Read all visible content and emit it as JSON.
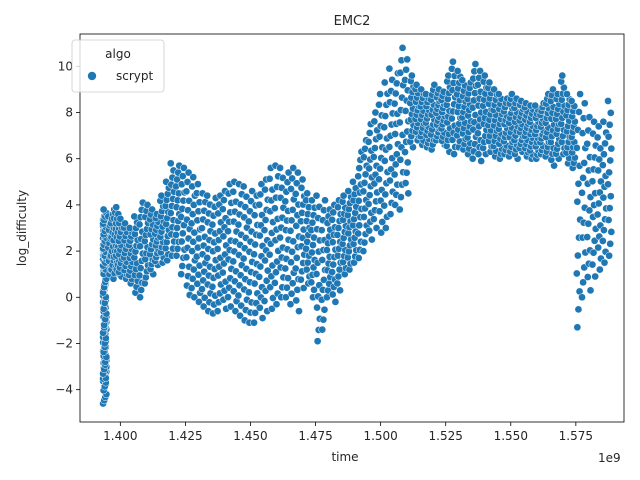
{
  "chart_data": {
    "type": "scatter",
    "title": "EMC2",
    "xlabel": "time",
    "ylabel": "log_difficulty",
    "x_offset_text": "1e9",
    "xlim": [
      1384500000.0,
      1593500000.0
    ],
    "ylim": [
      -5.4,
      11.4
    ],
    "x_ticks": [
      1400000000.0,
      1425000000.0,
      1450000000.0,
      1475000000.0,
      1500000000.0,
      1525000000.0,
      1550000000.0,
      1575000000.0
    ],
    "x_tick_labels": [
      "1.400",
      "1.425",
      "1.450",
      "1.475",
      "1.500",
      "1.525",
      "1.550",
      "1.575"
    ],
    "y_ticks": [
      -4,
      -2,
      0,
      2,
      4,
      6,
      8,
      10
    ],
    "y_tick_labels": [
      "−4",
      "−2",
      "0",
      "2",
      "4",
      "6",
      "8",
      "10"
    ],
    "grid": false,
    "legend": {
      "title": "algo",
      "placement": "upper-left",
      "entries": [
        {
          "label": "scrypt",
          "color": "#1f77b4"
        }
      ]
    },
    "series": [
      {
        "name": "scrypt",
        "color": "#1f77b4",
        "marker_edge": "#ffffff",
        "x": [
          1394000000.0,
          1394000000.0,
          1394000000.0,
          1394000000.0,
          1394000000.0,
          1394000000.0,
          1394000000.0,
          1394000000.0,
          1394000000.0,
          1394000000.0,
          1394000000.0,
          1394000000.0,
          1396000000.0,
          1397000000.0,
          1398000000.0,
          1399000000.0,
          1400000000.0,
          1402000000.0,
          1404000000.0,
          1406000000.0,
          1408000000.0,
          1410000000.0,
          1412000000.0,
          1414000000.0,
          1416000000.0,
          1418000000.0,
          1420000000.0,
          1422000000.0,
          1424000000.0,
          1426000000.0,
          1428000000.0,
          1430000000.0,
          1432000000.0,
          1434000000.0,
          1436000000.0,
          1438000000.0,
          1440000000.0,
          1442000000.0,
          1444000000.0,
          1446000000.0,
          1448000000.0,
          1450000000.0,
          1452000000.0,
          1454000000.0,
          1456000000.0,
          1458000000.0,
          1460000000.0,
          1462000000.0,
          1464000000.0,
          1466000000.0,
          1468000000.0,
          1470000000.0,
          1472000000.0,
          1474000000.0,
          1476000000.0,
          1478000000.0,
          1480000000.0,
          1482000000.0,
          1484000000.0,
          1486000000.0,
          1488000000.0,
          1490000000.0,
          1492000000.0,
          1494000000.0,
          1496000000.0,
          1498000000.0,
          1500000000.0,
          1502000000.0,
          1504000000.0,
          1506000000.0,
          1508000000.0,
          1510000000.0,
          1512000000.0,
          1514000000.0,
          1516000000.0,
          1518000000.0,
          1520000000.0,
          1522000000.0,
          1524000000.0,
          1526000000.0,
          1528000000.0,
          1530000000.0,
          1532000000.0,
          1534000000.0,
          1536000000.0,
          1538000000.0,
          1540000000.0,
          1542000000.0,
          1544000000.0,
          1546000000.0,
          1548000000.0,
          1550000000.0,
          1552000000.0,
          1554000000.0,
          1556000000.0,
          1558000000.0,
          1560000000.0,
          1562000000.0,
          1564000000.0,
          1566000000.0,
          1568000000.0,
          1570000000.0,
          1572000000.0,
          1574000000.0,
          1576000000.0,
          1578000000.0,
          1580000000.0,
          1582000000.0,
          1584000000.0,
          1586000000.0,
          1588000000.0
        ],
        "y_low": [
          -4.6,
          -4.2,
          -3.5,
          -2.8,
          -2.0,
          -1.2,
          -0.5,
          0.2,
          0.8,
          1.2,
          1.5,
          1.8,
          1.0,
          1.2,
          0.8,
          1.0,
          0.9,
          0.8,
          0.6,
          0.2,
          0.0,
          0.6,
          1.0,
          1.4,
          1.5,
          1.6,
          1.8,
          1.8,
          1.0,
          0.1,
          0.0,
          -0.2,
          -0.4,
          -0.6,
          -0.7,
          -0.6,
          -0.5,
          -0.4,
          -0.6,
          -0.8,
          -1.0,
          -1.1,
          -1.1,
          -0.9,
          -0.6,
          -0.5,
          -0.3,
          0.0,
          0.0,
          -0.3,
          -0.6,
          0.4,
          0.6,
          0.0,
          -1.9,
          -1.4,
          0.0,
          -0.2,
          0.3,
          1.0,
          1.2,
          1.5,
          1.7,
          2.0,
          2.5,
          3.0,
          2.8,
          3.0,
          3.6,
          4.0,
          3.8,
          4.5,
          6.5,
          6.8,
          6.6,
          6.5,
          6.4,
          6.8,
          6.6,
          6.3,
          6.2,
          6.5,
          6.4,
          6.2,
          6.0,
          5.9,
          6.2,
          6.3,
          6.1,
          6.0,
          6.2,
          6.1,
          6.0,
          6.3,
          6.1,
          6.0,
          6.0,
          6.2,
          6.1,
          5.7,
          6.0,
          6.2,
          5.8,
          5.6,
          -1.3,
          0.0,
          0.3,
          0.9,
          1.2,
          1.5,
          1.8
        ],
        "y_high": [
          -2.8,
          -2.0,
          -1.0,
          0.0,
          1.0,
          2.0,
          2.8,
          3.2,
          3.5,
          3.4,
          3.5,
          3.8,
          3.5,
          3.8,
          3.9,
          3.6,
          3.4,
          3.2,
          3.0,
          3.5,
          4.1,
          4.0,
          3.8,
          3.6,
          4.4,
          5.0,
          5.8,
          5.7,
          5.6,
          5.4,
          5.2,
          4.9,
          4.5,
          4.4,
          4.3,
          4.4,
          4.6,
          4.9,
          5.0,
          4.9,
          4.8,
          4.6,
          4.4,
          4.9,
          5.1,
          5.6,
          5.7,
          5.6,
          5.4,
          5.6,
          5.4,
          5.1,
          4.5,
          4.2,
          4.4,
          4.2,
          3.8,
          4.0,
          4.2,
          4.4,
          4.6,
          5.0,
          6.3,
          6.8,
          7.5,
          8.0,
          8.8,
          9.3,
          9.9,
          9.7,
          10.8,
          10.3,
          9.6,
          9.2,
          9.0,
          8.8,
          9.2,
          9.0,
          8.9,
          9.6,
          10.2,
          9.8,
          9.4,
          9.3,
          10.1,
          9.8,
          9.6,
          9.3,
          9.0,
          8.8,
          8.6,
          8.8,
          8.6,
          8.5,
          8.4,
          8.3,
          8.3,
          8.4,
          8.8,
          9.0,
          8.8,
          9.6,
          8.8,
          8.5,
          8.8,
          8.4,
          7.8,
          7.6,
          7.4,
          7.6,
          8.5
        ]
      }
    ]
  }
}
